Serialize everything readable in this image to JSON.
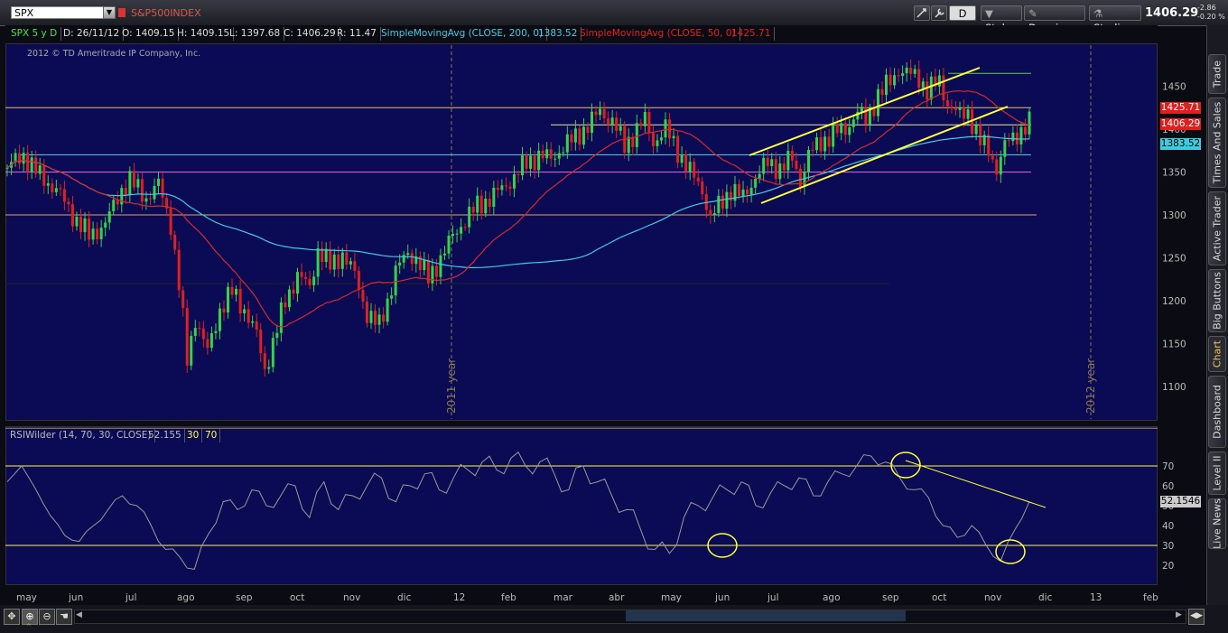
{
  "toolbar": {
    "symbol": "SPX",
    "index_name": "S&P500INDEX",
    "aggregation": "D",
    "style_label": "Style",
    "drawings_label": "Drawings",
    "studies_label": "Studies",
    "last_price": "1406.29",
    "change_abs": "-2.86",
    "change_pct": "-0.20 %"
  },
  "info_bar": {
    "period": "SPX 5 y D",
    "date": "D: 26/11/12",
    "open": "O: 1409.15",
    "high": "H: 1409.15",
    "low": "L: 1397.68",
    "close": "C: 1406.29",
    "range": "R: 11.47",
    "sma200_label": "SimpleMovingAvg (CLOSE, 200, 0)",
    "sma200_value": "1383.52",
    "sma50_label": "SimpleMovingAvg (CLOSE, 50, 0)",
    "sma50_value": "1425.71"
  },
  "copyright": "2012 © TD Ameritrade IP Company, Inc.",
  "rsi_bar": {
    "label": "RSIWilder (14, 70, 30, CLOSE)",
    "value": "52.155",
    "low": "30",
    "high": "70"
  },
  "colors": {
    "up": "#36d34a",
    "down": "#e0201e",
    "sma200": "#3ecde0",
    "sma50": "#d52a2a",
    "rsi": "#9a9a9a",
    "trend": "#ffff40",
    "panel": "#0a0a55"
  },
  "side_tabs": [
    "Trade",
    "Times And Sales",
    "Active Trader",
    "Big Buttons",
    "Chart",
    "Dashboard",
    "Level II",
    "Live News"
  ],
  "chart_data": [
    {
      "type": "candlestick",
      "title": "SPX 5 y D",
      "ylim": [
        1060,
        1500
      ],
      "y_ticks": [
        1100,
        1150,
        1200,
        1250,
        1300,
        1350,
        1400,
        1450
      ],
      "x_labels": [
        "may",
        "jun",
        "jul",
        "ago",
        "sep",
        "oct",
        "nov",
        "dic",
        "12",
        "feb",
        "mar",
        "abr",
        "may",
        "jun",
        "jul",
        "ago",
        "sep",
        "oct",
        "nov",
        "dic",
        "13",
        "feb"
      ],
      "vertical_markers": [
        "2011 year",
        "2012 year"
      ],
      "close_path": [
        [
          0,
          1355
        ],
        [
          8,
          1370
        ],
        [
          16,
          1345
        ],
        [
          24,
          1330
        ],
        [
          32,
          1300
        ],
        [
          40,
          1275
        ],
        [
          48,
          1290
        ],
        [
          56,
          1330
        ],
        [
          60,
          1340
        ],
        [
          68,
          1320
        ],
        [
          74,
          1335
        ],
        [
          80,
          1290
        ],
        [
          85,
          1200
        ],
        [
          88,
          1130
        ],
        [
          92,
          1180
        ],
        [
          98,
          1140
        ],
        [
          104,
          1190
        ],
        [
          110,
          1210
        ],
        [
          116,
          1190
        ],
        [
          122,
          1160
        ],
        [
          126,
          1120
        ],
        [
          130,
          1150
        ],
        [
          136,
          1200
        ],
        [
          142,
          1230
        ],
        [
          148,
          1215
        ],
        [
          152,
          1260
        ],
        [
          158,
          1240
        ],
        [
          164,
          1255
        ],
        [
          170,
          1230
        ],
        [
          176,
          1185
        ],
        [
          182,
          1170
        ],
        [
          186,
          1200
        ],
        [
          190,
          1235
        ],
        [
          196,
          1255
        ],
        [
          200,
          1250
        ],
        [
          206,
          1225
        ],
        [
          212,
          1250
        ],
        [
          218,
          1275
        ],
        [
          224,
          1295
        ],
        [
          230,
          1310
        ],
        [
          236,
          1320
        ],
        [
          242,
          1330
        ],
        [
          248,
          1345
        ],
        [
          254,
          1360
        ],
        [
          260,
          1370
        ],
        [
          266,
          1365
        ],
        [
          272,
          1380
        ],
        [
          278,
          1390
        ],
        [
          284,
          1405
        ],
        [
          290,
          1420
        ],
        [
          296,
          1410
        ],
        [
          302,
          1380
        ],
        [
          308,
          1400
        ],
        [
          312,
          1410
        ],
        [
          316,
          1385
        ],
        [
          322,
          1400
        ],
        [
          328,
          1375
        ],
        [
          334,
          1350
        ],
        [
          340,
          1330
        ],
        [
          344,
          1295
        ],
        [
          348,
          1310
        ],
        [
          354,
          1330
        ],
        [
          360,
          1320
        ],
        [
          366,
          1345
        ],
        [
          372,
          1360
        ],
        [
          378,
          1355
        ],
        [
          384,
          1365
        ],
        [
          388,
          1340
        ],
        [
          392,
          1370
        ],
        [
          398,
          1385
        ],
        [
          404,
          1395
        ],
        [
          410,
          1400
        ],
        [
          416,
          1420
        ],
        [
          420,
          1410
        ],
        [
          426,
          1440
        ],
        [
          432,
          1455
        ],
        [
          436,
          1470
        ],
        [
          440,
          1465
        ],
        [
          446,
          1460
        ],
        [
          450,
          1445
        ],
        [
          456,
          1455
        ],
        [
          460,
          1430
        ],
        [
          466,
          1415
        ],
        [
          470,
          1420
        ],
        [
          476,
          1385
        ],
        [
          480,
          1375
        ],
        [
          484,
          1355
        ],
        [
          488,
          1380
        ],
        [
          494,
          1395
        ],
        [
          500,
          1406.29
        ]
      ],
      "series": [
        {
          "name": "SimpleMovingAvg (CLOSE, 200, 0)",
          "value": 1383.52
        },
        {
          "name": "SimpleMovingAvg (CLOSE, 50, 0)",
          "value": 1425.71
        }
      ],
      "horizontal_levels": [
        1465,
        1425,
        1405,
        1370,
        1350,
        1300,
        1220
      ],
      "price_labels": [
        {
          "value": "1425.71",
          "color": "#e0201e"
        },
        {
          "value": "1406.29",
          "color": "#e0201e"
        },
        {
          "value": "1383.52",
          "color": "#3ecde0"
        }
      ]
    },
    {
      "type": "line",
      "title": "RSIWilder (14, 70, 30, CLOSE)",
      "ylim": [
        10,
        90
      ],
      "y_ticks": [
        20,
        30,
        40,
        50,
        60,
        70
      ],
      "overbought": 70,
      "oversold": 30,
      "last_value": "52.1546",
      "values": [
        62,
        70,
        58,
        45,
        35,
        32,
        40,
        48,
        55,
        50,
        40,
        28,
        24,
        18,
        36,
        52,
        48,
        58,
        50,
        55,
        60,
        44,
        62,
        48,
        55,
        60,
        64,
        52,
        60,
        66,
        58,
        64,
        68,
        72,
        68,
        74,
        70,
        72,
        66,
        58,
        70,
        62,
        55,
        48,
        38,
        28,
        26,
        44,
        50,
        54,
        58,
        62,
        50,
        56,
        60,
        64,
        55,
        62,
        66,
        70,
        75,
        72,
        64,
        58,
        54,
        40,
        34,
        40,
        30,
        22,
        38,
        52
      ]
    }
  ]
}
